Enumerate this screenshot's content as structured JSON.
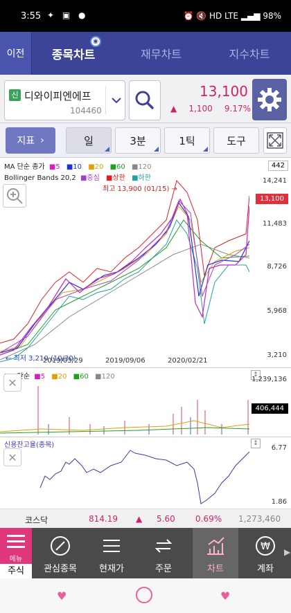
{
  "status": {
    "time": "3:55",
    "battery": "98%",
    "network": "HD LTE"
  },
  "topnav": {
    "back": "이전",
    "tabs": [
      {
        "label": "종목차트",
        "active": true
      },
      {
        "label": "재무차트"
      },
      {
        "label": "지수차트"
      }
    ]
  },
  "stock": {
    "badge": "신",
    "name": "디와이피엔에프",
    "code": "104460",
    "price": "13,100",
    "change": "1,100",
    "change_pct": "9.17%",
    "change_color": "#d0226a"
  },
  "toolbar": {
    "indicator": "지표",
    "segments": [
      "일",
      "3분",
      "1틱",
      "도구"
    ],
    "active_segment": "일"
  },
  "chart": {
    "ma_legend": {
      "title": "MA 단순 종가",
      "items": [
        "5",
        "10",
        "20",
        "60",
        "120"
      ],
      "colors": [
        "#d020c0",
        "#2030e0",
        "#e0a000",
        "#20a020",
        "#888888"
      ]
    },
    "bb_legend": {
      "title": "Bollinger Bands 20,2",
      "items": [
        "중심",
        "상한",
        "하한"
      ],
      "colors": [
        "#a040d0",
        "#e02020",
        "#20a0a0"
      ]
    },
    "period_box": "442",
    "price_axis": [
      "14,241",
      "11,483",
      "8,726",
      "5,968",
      "3,210"
    ],
    "price_tag": "13,100",
    "high_annot": "최고 13,900 (01/15) →",
    "low_annot": "← 최저 3,210 (10/30)",
    "dates": [
      "2019/03/29",
      "2019/09/06",
      "2020/02/21"
    ],
    "volume": {
      "title": "MA 단순",
      "items": [
        "5",
        "20",
        "60",
        "120"
      ],
      "axis_top": "1,239,136",
      "tag": "406,444"
    },
    "credit": {
      "title": "신용잔고율(종목)",
      "axis_top": "6.77",
      "axis_bottom": "1.86"
    }
  },
  "ticker": {
    "name": "코스닥",
    "value": "814.19",
    "change": "5.60",
    "pct": "0.69%",
    "volume": "1,273,460"
  },
  "bottomnav": {
    "menu": "메뉴",
    "jusik": "주식",
    "items": [
      "관심종목",
      "현재가",
      "주문",
      "차트",
      "계좌"
    ],
    "active": "차트"
  }
}
